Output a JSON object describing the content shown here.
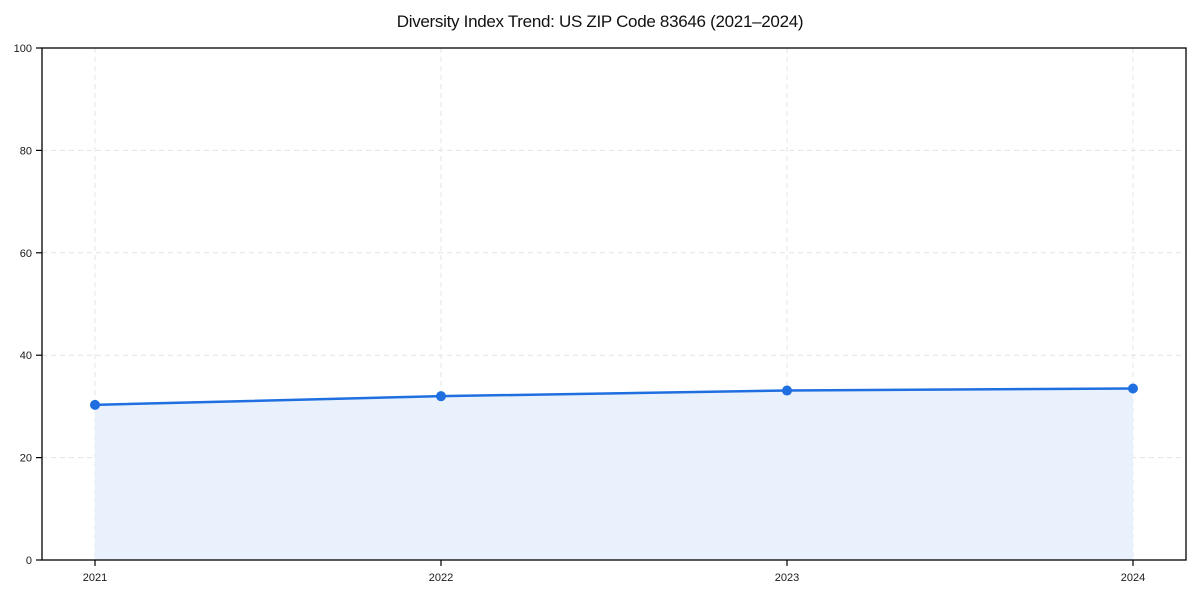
{
  "chart_data": {
    "type": "area",
    "title": "Diversity Index Trend: US ZIP Code 83646 (2021–2024)",
    "categories": [
      "2021",
      "2022",
      "2023",
      "2024"
    ],
    "series": [
      {
        "name": "Diversity Index",
        "values": [
          30.3,
          32.0,
          33.1,
          33.5
        ]
      }
    ],
    "xlabel": "",
    "ylabel": "",
    "ylim": [
      0,
      100
    ],
    "yticks": [
      0,
      20,
      40,
      60,
      80,
      100
    ],
    "grid": "dashed-both",
    "legend_position": "none",
    "marker": "circle",
    "colors": {
      "line": "#1f6fe0",
      "marker": "#1f6fe0",
      "fill": "#e8f1fc",
      "grid": "#e4e4e4",
      "axis": "#000000",
      "tick_label": "#1a1a1a",
      "background": "#ffffff"
    }
  }
}
